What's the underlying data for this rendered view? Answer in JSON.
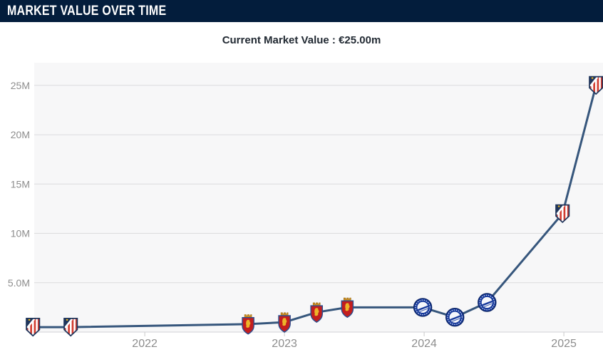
{
  "header": {
    "title": "MARKET VALUE OVER TIME"
  },
  "subtitle": {
    "text": "Current Market Value : €25.00m"
  },
  "chart_data": {
    "type": "line",
    "title": "Market value over time",
    "currency": "€",
    "unit": "m",
    "points": [
      {
        "date": "Mar 2021",
        "year": 2021.2,
        "value_m": 0.5,
        "club": "atletico-madrid"
      },
      {
        "date": "Jun 2021",
        "year": 2021.47,
        "value_m": 0.5,
        "club": "atletico-madrid"
      },
      {
        "date": "Oct 2022",
        "year": 2022.74,
        "value_m": 0.8,
        "club": "real-zaragoza"
      },
      {
        "date": "Jan 2023",
        "year": 2023.0,
        "value_m": 1.0,
        "club": "real-zaragoza"
      },
      {
        "date": "Mar 2023",
        "year": 2023.23,
        "value_m": 2.0,
        "club": "real-zaragoza"
      },
      {
        "date": "Jun 2023",
        "year": 2023.45,
        "value_m": 2.5,
        "club": "real-zaragoza"
      },
      {
        "date": "Dec 2023",
        "year": 2023.99,
        "value_m": 2.5,
        "club": "alaves"
      },
      {
        "date": "Mar 2024",
        "year": 2024.22,
        "value_m": 1.5,
        "club": "alaves"
      },
      {
        "date": "Jun 2024",
        "year": 2024.45,
        "value_m": 3.0,
        "club": "alaves"
      },
      {
        "date": "Dec 2024",
        "year": 2024.99,
        "value_m": 12.0,
        "club": "atletico-madrid"
      },
      {
        "date": "Mar 2025",
        "year": 2025.23,
        "value_m": 25.0,
        "club": "atletico-madrid"
      }
    ],
    "clubs": {
      "atletico-madrid": "Atlético Madrid",
      "real-zaragoza": "Real Zaragoza",
      "alaves": "Deportivo Alavés"
    },
    "y_ticks": [
      {
        "value": 5,
        "label": "5.0M"
      },
      {
        "value": 10,
        "label": "10M"
      },
      {
        "value": 15,
        "label": "15M"
      },
      {
        "value": 20,
        "label": "20M"
      },
      {
        "value": 25,
        "label": "25M"
      }
    ],
    "x_ticks": [
      {
        "year": 2022,
        "label": "2022"
      },
      {
        "year": 2023,
        "label": "2023"
      },
      {
        "year": 2024,
        "label": "2024"
      },
      {
        "year": 2025,
        "label": "2025"
      }
    ],
    "xlim": [
      2021.209,
      2025.28
    ],
    "ylim": [
      0,
      27.3
    ],
    "grid": true,
    "legend": "none",
    "line_color": "#36567c",
    "colors": {
      "header_bg": "#031d3c",
      "subtitle_text": "#222a33",
      "plot_bg": "#f7f7f8",
      "grid": "#dcdcde",
      "axis_line": "#d2d2d6",
      "tick": "#c9c9c9",
      "axis_label": "#8d8d8d"
    }
  }
}
